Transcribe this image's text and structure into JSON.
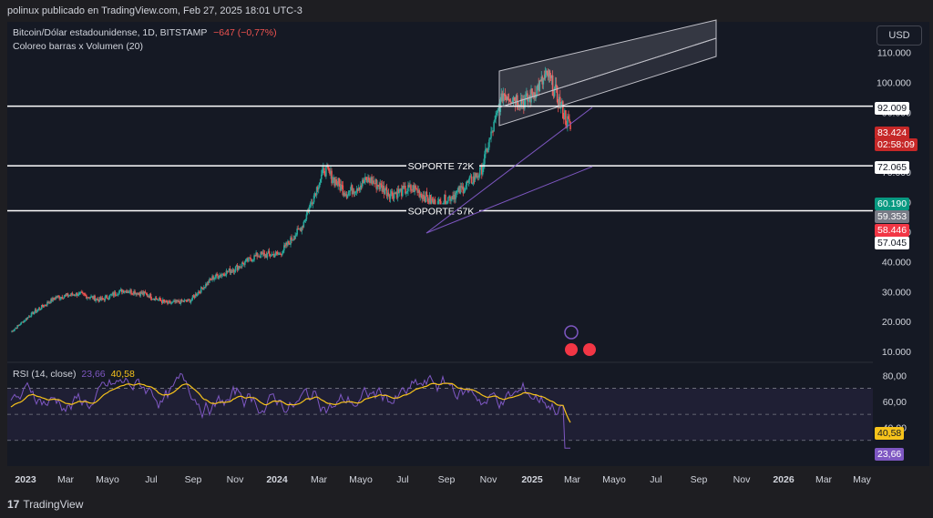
{
  "header": {
    "publish_text": "polinux publicado en TradingView.com, Feb 27, 2025 18:01 UTC-3"
  },
  "legend": {
    "symbol": "Bitcoin/Dólar estadounidense, 1D, BITSTAMP",
    "change": "−647 (−0,77%)",
    "indicator": "Coloreo barras x Volumen (20)"
  },
  "currency_button": "USD",
  "price_axis_ticks": [
    "110.000",
    "100.000",
    "90.000",
    "80.000",
    "70.000",
    "60.000",
    "50.000",
    "40.000",
    "30.000",
    "20.000",
    "10.000"
  ],
  "horizontal_lines": [
    {
      "label": "92.009",
      "value": 92009,
      "text": ""
    },
    {
      "label": "72.065",
      "value": 72065,
      "text": "SOPORTE 72K"
    },
    {
      "label": "57.045",
      "value": 57045,
      "text": "SOPORTE 57K"
    }
  ],
  "price_tags": {
    "current_price": "83.424",
    "countdown": "02:58:09",
    "tag_green": "60.190",
    "tag_gray": "59.353",
    "tag_red": "58.446"
  },
  "rsi": {
    "title": "RSI (14, close)",
    "rsi_value": "23,66",
    "ma_value": "40,58",
    "axis_ticks": [
      "80,00",
      "60,00",
      "40,00"
    ]
  },
  "time_axis": [
    "2023",
    "Mar",
    "Mayo",
    "Jul",
    "Sep",
    "Nov",
    "2024",
    "Mar",
    "Mayo",
    "Jul",
    "Sep",
    "Nov",
    "2025",
    "Mar",
    "Mayo",
    "Jul",
    "Sep",
    "Nov",
    "2026",
    "Mar",
    "May"
  ],
  "footer": {
    "brand": "TradingView"
  },
  "colors": {
    "up": "#26a69a",
    "down": "#ef5350",
    "rsi": "#7e57c2",
    "rsi_ma": "#f7c31b",
    "background": "#151924"
  },
  "chart_data": {
    "type": "line",
    "title": "Bitcoin/Dólar estadounidense, 1D, BITSTAMP",
    "x": [
      "2023-01",
      "2023-02",
      "2023-03",
      "2023-04",
      "2023-05",
      "2023-06",
      "2023-07",
      "2023-08",
      "2023-09",
      "2023-10",
      "2023-11",
      "2023-12",
      "2024-01",
      "2024-02",
      "2024-03",
      "2024-04",
      "2024-05",
      "2024-06",
      "2024-07",
      "2024-08",
      "2024-09",
      "2024-10",
      "2024-11",
      "2024-12",
      "2025-01",
      "2025-02"
    ],
    "series": [
      {
        "values": [
          16500,
          23000,
          28000,
          29300,
          27200,
          30500,
          29200,
          26000,
          27000,
          34500,
          37700,
          42200,
          42500,
          51800,
          71000,
          63000,
          67500,
          62700,
          64600,
          59000,
          63300,
          70200,
          96400,
          93400,
          102400,
          84300
        ]
      }
    ],
    "rsi_series": [
      {
        "name": "RSI (14, close)",
        "last": 23.66
      },
      {
        "name": "MA",
        "last": 40.58
      }
    ],
    "ylim": [
      10000,
      115000
    ],
    "rsi_ylim": [
      20,
      90
    ]
  }
}
